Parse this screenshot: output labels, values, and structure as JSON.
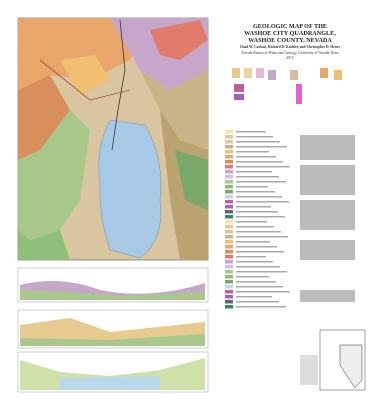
{
  "header": {
    "title": [
      "GEOLOGIC MAP OF THE",
      "WASHOE CITY QUADRANGLE,",
      "WASHOE COUNTY, NEVADA"
    ],
    "authors": "Chad W. Carlson, Richard D. Koehler, and Christopher D. Henry",
    "publisher": "Nevada Bureau of Mines and Geology, University of Nevada, Reno",
    "year": "2015"
  }
}
